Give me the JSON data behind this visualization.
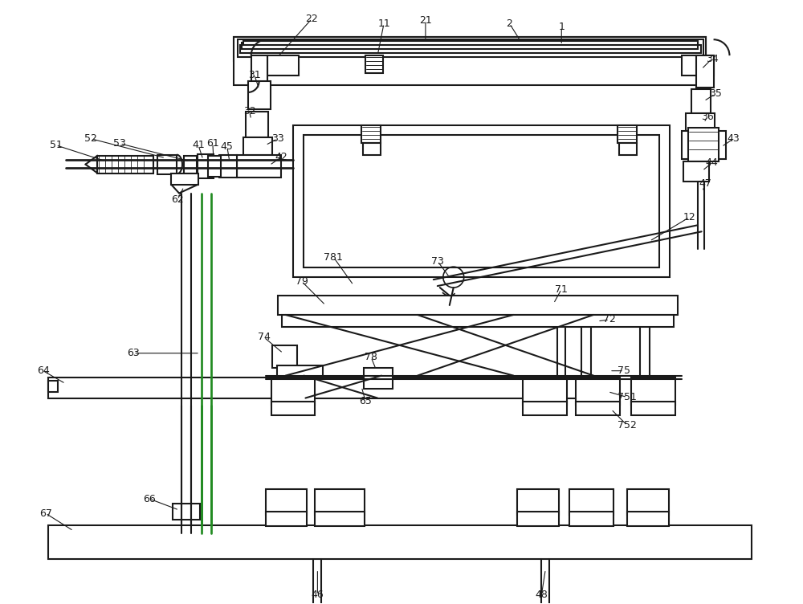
{
  "bg_color": "#ffffff",
  "line_color": "#1a1a1a",
  "green_color": "#228B22",
  "lw": 1.5,
  "fig_width": 10.0,
  "fig_height": 7.52
}
